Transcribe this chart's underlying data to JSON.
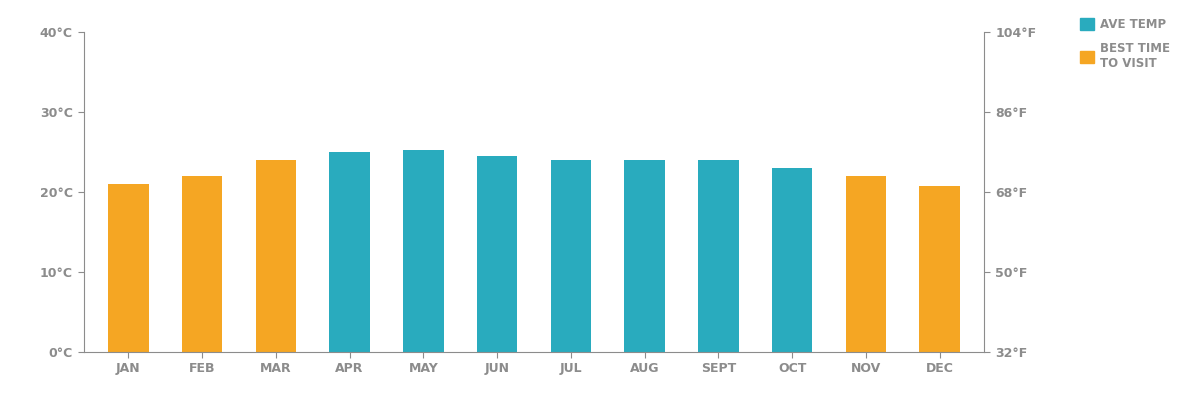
{
  "months": [
    "JAN",
    "FEB",
    "MAR",
    "APR",
    "MAY",
    "JUN",
    "JUL",
    "AUG",
    "SEPT",
    "OCT",
    "NOV",
    "DEC"
  ],
  "temperatures": [
    21.0,
    22.0,
    24.0,
    25.0,
    25.2,
    24.5,
    24.0,
    24.0,
    24.0,
    23.0,
    22.0,
    20.8
  ],
  "best_time": [
    true,
    true,
    true,
    false,
    false,
    false,
    false,
    false,
    false,
    false,
    true,
    true
  ],
  "color_ave_temp": "#29ABBE",
  "color_best_time": "#F5A623",
  "background_color": "#FFFFFF",
  "axis_color": "#8C8C8C",
  "ylim_left": [
    0,
    40
  ],
  "ylim_right": [
    32,
    104
  ],
  "yticks_left": [
    0,
    10,
    20,
    30,
    40
  ],
  "ytick_labels_left": [
    "0°C",
    "10°C",
    "20°C",
    "30°C",
    "40°C"
  ],
  "yticks_right": [
    32,
    50,
    68,
    86,
    104
  ],
  "ytick_labels_right": [
    "32°F",
    "50°F",
    "68°F",
    "86°F",
    "104°F"
  ],
  "legend_ave_temp": "AVE TEMP",
  "legend_best_time": "BEST TIME\nTO VISIT",
  "bar_width": 0.55
}
